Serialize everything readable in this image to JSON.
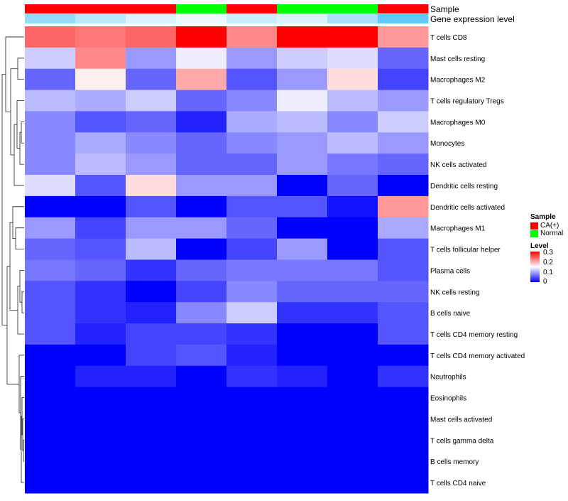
{
  "annotations": {
    "sample_label": "Sample",
    "expression_label": "Gene expression level",
    "sample_groups": [
      "CA(+)",
      "CA(+)",
      "CA(+)",
      "Normal",
      "CA(+)",
      "Normal",
      "Normal",
      "CA(+)"
    ],
    "expression_levels": [
      0.6,
      0.4,
      0.2,
      0.1,
      0.3,
      0.2,
      0.5,
      0.9
    ]
  },
  "legend": {
    "sample_title": "Sample",
    "sample_items": [
      {
        "label": "CA(+)",
        "color": "#ff0000"
      },
      {
        "label": "Normal",
        "color": "#00ff00"
      }
    ],
    "level_title": "Level",
    "level_ticks": [
      "0.3",
      "0.2",
      "0.1",
      "0"
    ]
  },
  "colors": {
    "high": "#ff0000",
    "mid": "#ffffff",
    "low": "#0000ff",
    "expression_low": "#ffffff",
    "expression_high": "#4fc3f7"
  },
  "chart_data": {
    "type": "heatmap",
    "title": "",
    "value_range": [
      0,
      0.3
    ],
    "row_labels": [
      "T cells CD8",
      "Mast cells resting",
      "Macrophages M2",
      "T cells regulatory  Tregs",
      "Macrophages M0",
      "Monocytes",
      "NK cells activated",
      "Dendritic cells resting",
      "Dendritic cells activated",
      "Macrophages M1",
      "T cells follicular helper",
      "Plasma cells",
      "NK cells resting",
      "B cells naive",
      "T cells CD4 memory resting",
      "T cells CD4 memory activated",
      "Neutrophils",
      "Eosinophils",
      "Mast cells activated",
      "T cells gamma delta",
      "B cells memory",
      "T cells CD4 naive"
    ],
    "values": [
      [
        0.24,
        0.23,
        0.24,
        0.3,
        0.22,
        0.3,
        0.3,
        0.21
      ],
      [
        0.12,
        0.22,
        0.09,
        0.14,
        0.09,
        0.12,
        0.13,
        0.06
      ],
      [
        0.06,
        0.16,
        0.06,
        0.2,
        0.05,
        0.09,
        0.17,
        0.04
      ],
      [
        0.11,
        0.1,
        0.12,
        0.06,
        0.08,
        0.14,
        0.11,
        0.09
      ],
      [
        0.08,
        0.05,
        0.06,
        0.02,
        0.1,
        0.11,
        0.08,
        0.12
      ],
      [
        0.08,
        0.1,
        0.08,
        0.06,
        0.08,
        0.09,
        0.11,
        0.09
      ],
      [
        0.08,
        0.11,
        0.09,
        0.06,
        0.06,
        0.09,
        0.07,
        0.06
      ],
      [
        0.13,
        0.05,
        0.17,
        0.09,
        0.09,
        0.0,
        0.06,
        0.0
      ],
      [
        0.0,
        0.0,
        0.05,
        0.0,
        0.05,
        0.05,
        0.01,
        0.21
      ],
      [
        0.09,
        0.04,
        0.09,
        0.09,
        0.06,
        0.0,
        0.0,
        0.1
      ],
      [
        0.06,
        0.05,
        0.11,
        0.0,
        0.04,
        0.09,
        0.0,
        0.05
      ],
      [
        0.07,
        0.06,
        0.03,
        0.06,
        0.07,
        0.07,
        0.07,
        0.05
      ],
      [
        0.05,
        0.03,
        0.0,
        0.04,
        0.08,
        0.06,
        0.06,
        0.06
      ],
      [
        0.05,
        0.03,
        0.02,
        0.08,
        0.12,
        0.03,
        0.03,
        0.05
      ],
      [
        0.05,
        0.02,
        0.04,
        0.04,
        0.03,
        0.0,
        0.0,
        0.05
      ],
      [
        0.0,
        0.0,
        0.04,
        0.05,
        0.02,
        0.0,
        0.0,
        0.0
      ],
      [
        0.0,
        0.02,
        0.02,
        0.0,
        0.03,
        0.02,
        0.0,
        0.03
      ],
      [
        0.0,
        0.0,
        0.0,
        0.0,
        0.0,
        0.0,
        0.0,
        0.0
      ],
      [
        0.0,
        0.0,
        0.0,
        0.0,
        0.0,
        0.0,
        0.0,
        0.0
      ],
      [
        0.0,
        0.0,
        0.0,
        0.0,
        0.0,
        0.0,
        0.0,
        0.0
      ],
      [
        0.0,
        0.0,
        0.0,
        0.0,
        0.0,
        0.0,
        0.0,
        0.0
      ],
      [
        0.0,
        0.0,
        0.0,
        0.0,
        0.0,
        0.0,
        0.0,
        0.0
      ]
    ],
    "legend_placement": "right",
    "row_dendrogram": true,
    "grid": false
  }
}
